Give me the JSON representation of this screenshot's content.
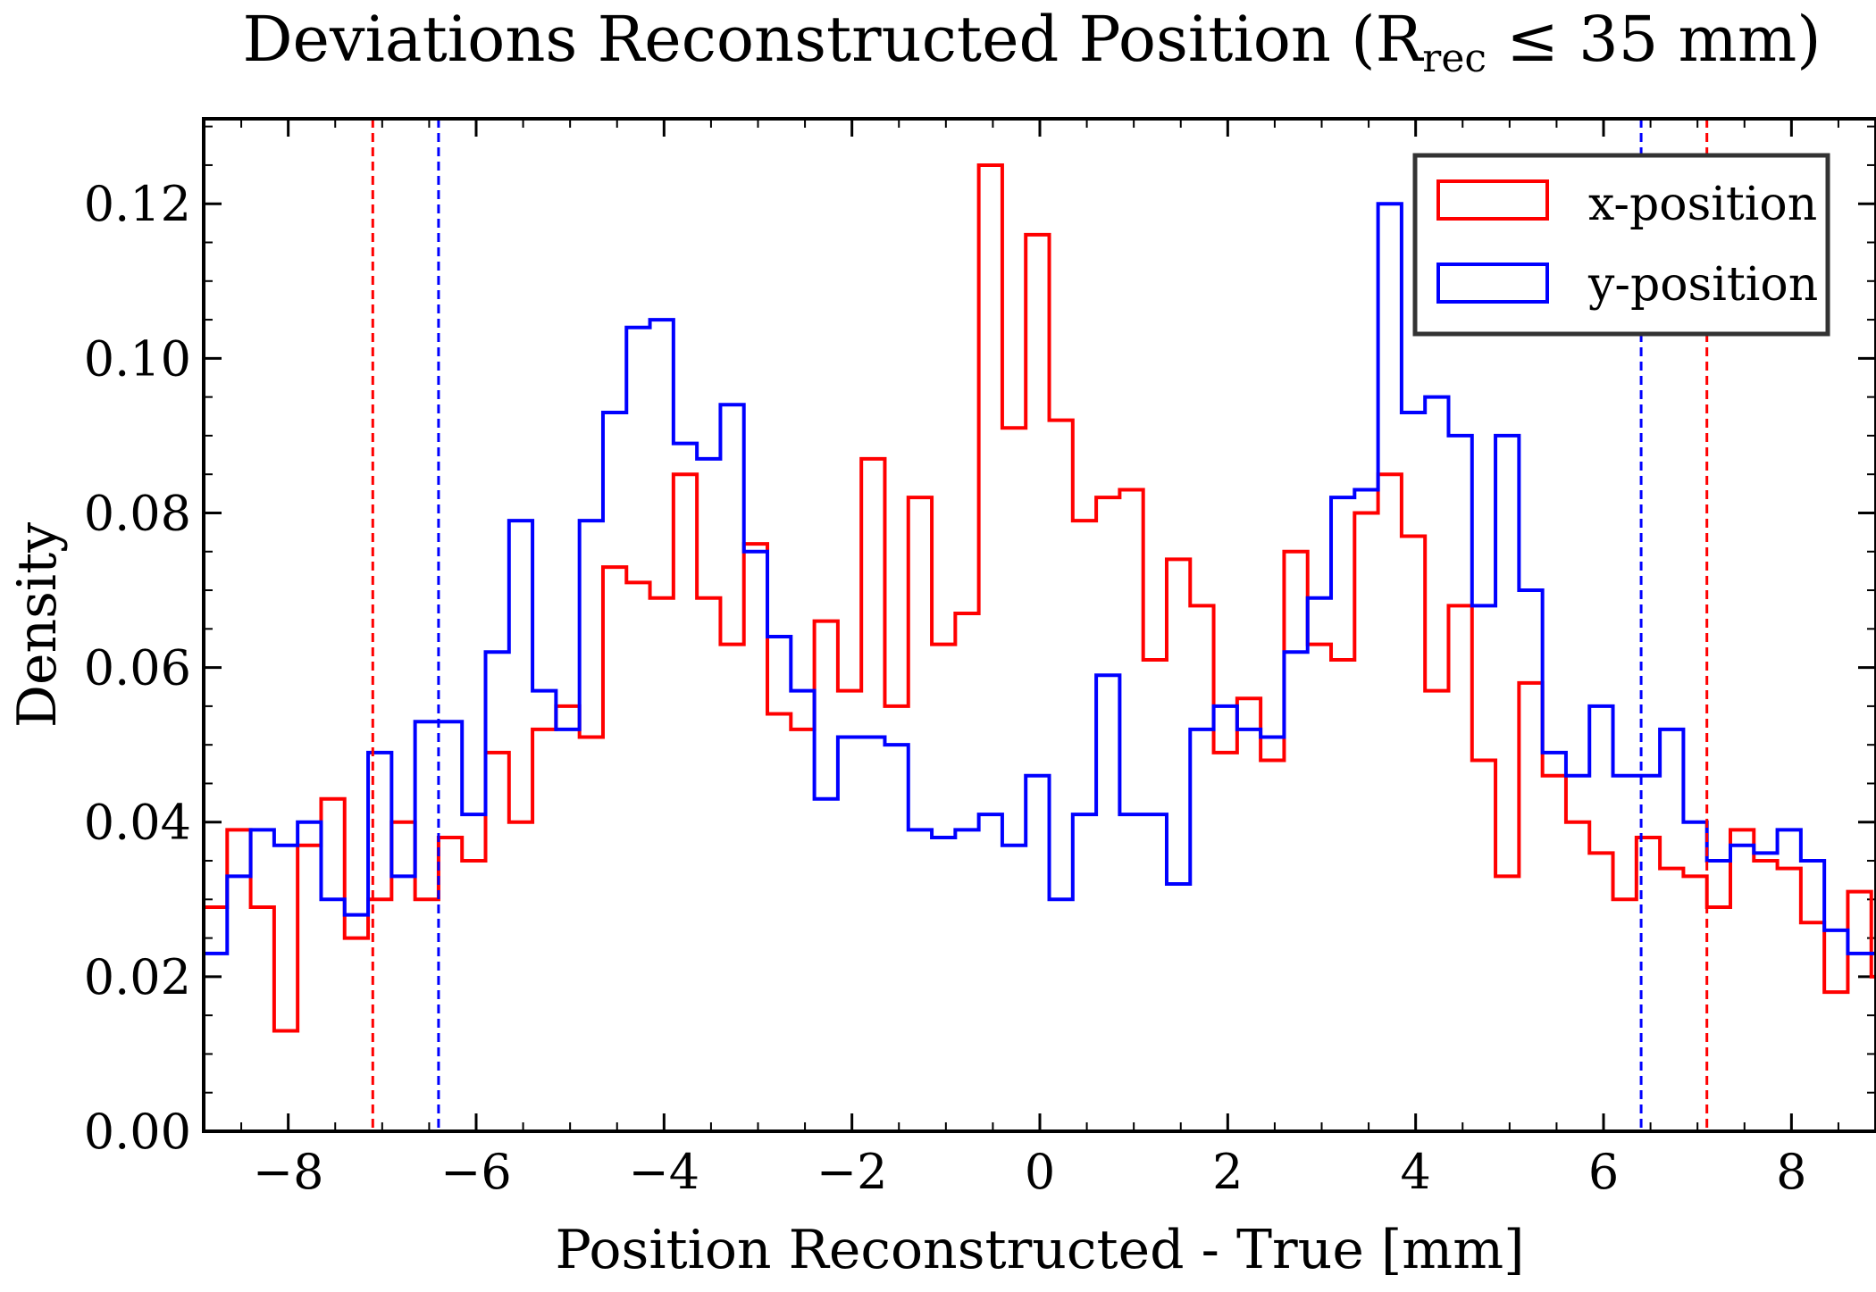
{
  "chart_data": {
    "type": "histogram-step",
    "title": "Deviations Reconstructed Position (R",
    "title_subscript": "rec",
    "title_suffix": " ≤ 35 mm)",
    "xlabel": "Position Reconstructed - True [mm]",
    "ylabel": "Density",
    "xlim": [
      -8.9,
      8.9
    ],
    "ylim": [
      0.0,
      0.131
    ],
    "x_ticks": [
      -8,
      -6,
      -4,
      -2,
      0,
      2,
      4,
      6,
      8
    ],
    "x_tick_labels": [
      "−8",
      "−6",
      "−4",
      "−2",
      "0",
      "2",
      "4",
      "6",
      "8"
    ],
    "y_ticks": [
      0.0,
      0.02,
      0.04,
      0.06,
      0.08,
      0.1,
      0.12
    ],
    "y_tick_labels": [
      "0.00",
      "0.02",
      "0.04",
      "0.06",
      "0.08",
      "0.10",
      "0.12"
    ],
    "legend": {
      "position": "top-right"
    },
    "bins": {
      "start": -8.9,
      "width": 0.25,
      "count": 72
    },
    "series": [
      {
        "name": "x-position",
        "color": "#ff0000",
        "values": [
          0.029,
          0.039,
          0.029,
          0.013,
          0.037,
          0.043,
          0.025,
          0.03,
          0.04,
          0.03,
          0.038,
          0.035,
          0.049,
          0.04,
          0.052,
          0.055,
          0.051,
          0.073,
          0.071,
          0.069,
          0.085,
          0.069,
          0.063,
          0.076,
          0.054,
          0.052,
          0.066,
          0.057,
          0.087,
          0.055,
          0.082,
          0.063,
          0.067,
          0.125,
          0.091,
          0.116,
          0.092,
          0.079,
          0.082,
          0.083,
          0.061,
          0.074,
          0.068,
          0.049,
          0.056,
          0.048,
          0.075,
          0.063,
          0.061,
          0.08,
          0.085,
          0.077,
          0.057,
          0.068,
          0.048,
          0.033,
          0.058,
          0.046,
          0.04,
          0.036,
          0.03,
          0.038,
          0.034,
          0.033,
          0.029,
          0.039,
          0.035,
          0.034,
          0.027,
          0.018,
          0.031,
          0.02
        ],
        "dashed_line": [
          -7.1,
          7.1
        ]
      },
      {
        "name": "y-position",
        "color": "#0000ff",
        "values": [
          0.023,
          0.033,
          0.039,
          0.037,
          0.04,
          0.03,
          0.028,
          0.049,
          0.033,
          0.053,
          0.053,
          0.041,
          0.062,
          0.079,
          0.057,
          0.052,
          0.079,
          0.093,
          0.104,
          0.105,
          0.089,
          0.087,
          0.094,
          0.075,
          0.064,
          0.057,
          0.043,
          0.051,
          0.051,
          0.05,
          0.039,
          0.038,
          0.039,
          0.041,
          0.037,
          0.046,
          0.03,
          0.041,
          0.059,
          0.041,
          0.041,
          0.032,
          0.052,
          0.055,
          0.052,
          0.051,
          0.062,
          0.069,
          0.082,
          0.083,
          0.12,
          0.093,
          0.095,
          0.09,
          0.068,
          0.09,
          0.07,
          0.049,
          0.046,
          0.055,
          0.046,
          0.046,
          0.052,
          0.04,
          0.035,
          0.037,
          0.036,
          0.039,
          0.035,
          0.026,
          0.023,
          0.023
        ],
        "dashed_line": [
          -6.4,
          6.4
        ]
      }
    ]
  }
}
